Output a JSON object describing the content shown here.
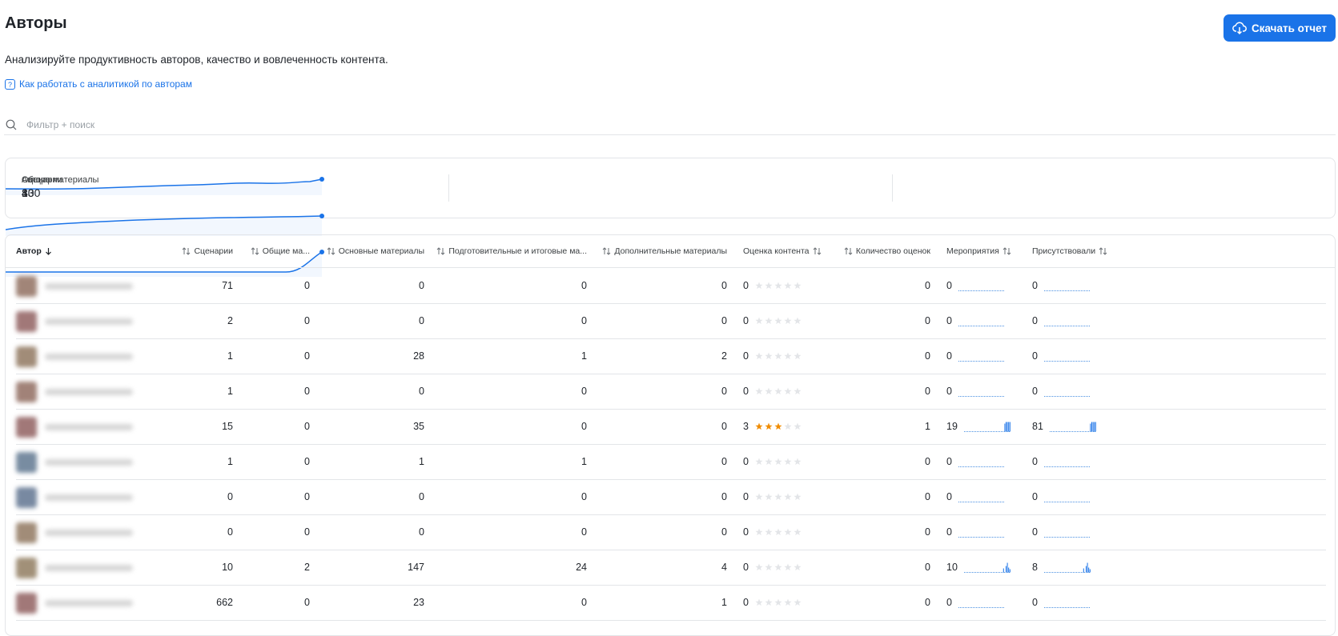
{
  "header": {
    "title": "Авторы",
    "subtitle": "Анализируйте продуктивность авторов, качество и вовлеченность контента.",
    "help_link": "Как работать с аналитикой по авторам",
    "download_button": "Скачать отчет"
  },
  "search": {
    "placeholder": "Фильтр + поиск"
  },
  "kpis": [
    {
      "label": "Авторы",
      "value": 13
    },
    {
      "label": "Сценарии",
      "value": 800
    },
    {
      "label": "Общие материалы",
      "value": 4
    }
  ],
  "table": {
    "columns": [
      "Автор",
      "Сценарии",
      "Общие ма...",
      "Основные материалы",
      "Подготовительные и итоговые ма...",
      "Дополнительные материалы",
      "Оценка контента",
      "Количество оценок",
      "Мероприятия",
      "Присутствовали"
    ],
    "rows": [
      [
        71,
        0,
        0,
        0,
        0,
        0,
        0,
        0,
        0
      ],
      [
        2,
        0,
        0,
        0,
        0,
        0,
        0,
        0,
        0
      ],
      [
        1,
        0,
        28,
        1,
        2,
        0,
        0,
        0,
        0
      ],
      [
        1,
        0,
        0,
        0,
        0,
        0,
        0,
        0,
        0
      ],
      [
        15,
        0,
        35,
        0,
        0,
        3,
        1,
        19,
        81
      ],
      [
        1,
        0,
        1,
        1,
        0,
        0,
        0,
        0,
        0
      ],
      [
        0,
        0,
        0,
        0,
        0,
        0,
        0,
        0,
        0
      ],
      [
        0,
        0,
        0,
        0,
        0,
        0,
        0,
        0,
        0
      ],
      [
        10,
        2,
        147,
        24,
        4,
        0,
        0,
        10,
        8
      ],
      [
        662,
        0,
        23,
        0,
        1,
        0,
        0,
        0,
        0
      ]
    ]
  }
}
